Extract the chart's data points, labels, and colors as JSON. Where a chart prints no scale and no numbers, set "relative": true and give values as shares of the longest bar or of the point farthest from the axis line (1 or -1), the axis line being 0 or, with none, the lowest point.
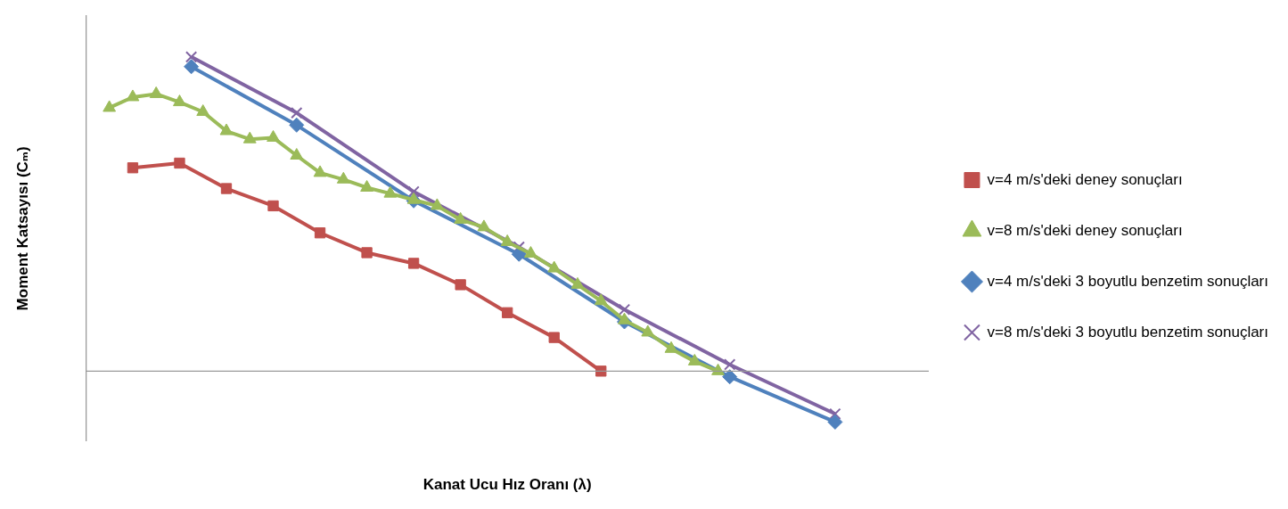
{
  "chart_data": {
    "type": "line",
    "relative": true,
    "xlabel": "Kanat Ucu Hız Oranı (λ)",
    "ylabel": "Moment Katsayısı (Cₘ)",
    "legend": "right",
    "grid": false,
    "tick_labels": false,
    "categories": [
      null,
      null,
      null,
      null,
      null,
      null,
      null,
      null,
      null,
      null,
      null,
      null,
      null,
      null,
      null,
      null,
      null,
      null,
      null,
      null,
      null,
      null,
      null,
      null,
      null,
      null,
      null,
      null,
      null,
      null,
      null,
      null,
      null,
      null,
      null,
      null,
      null,
      null,
      null,
      null,
      null,
      null,
      null,
      null,
      null,
      null,
      null,
      null,
      null,
      null,
      null,
      null,
      null,
      null,
      null,
      null,
      null,
      null,
      null,
      null,
      null,
      null,
      null,
      null,
      null,
      null,
      null,
      null,
      null,
      null,
      null,
      null,
      null
    ],
    "series": [
      {
        "name": "v=4 m/s'deki deney sonuçları",
        "color": "#c0504d",
        "marker": "square",
        "values": [
          null,
          null,
          null,
          null,
          0.647,
          null,
          null,
          null,
          0.662,
          null,
          null,
          null,
          0.581,
          null,
          null,
          null,
          0.526,
          null,
          null,
          null,
          0.44,
          null,
          null,
          null,
          0.377,
          null,
          null,
          null,
          0.343,
          null,
          null,
          null,
          0.275,
          null,
          null,
          null,
          0.186,
          null,
          null,
          null,
          0.107,
          null,
          null,
          null,
          0,
          null,
          null,
          null,
          null,
          null,
          null,
          null,
          null,
          null,
          null,
          null,
          null,
          null,
          null,
          null,
          null,
          null,
          null,
          null,
          null,
          null,
          null,
          null,
          null,
          null,
          null,
          null,
          null
        ]
      },
      {
        "name": "v=8 m/s'deki deney sonuçları",
        "color": "#9bbb59",
        "marker": "triangle",
        "values": [
          null,
          null,
          0.838,
          null,
          0.872,
          null,
          0.882,
          null,
          0.856,
          null,
          0.825,
          null,
          0.764,
          null,
          0.738,
          null,
          0.743,
          null,
          0.686,
          null,
          0.631,
          null,
          0.61,
          null,
          0.584,
          null,
          0.565,
          null,
          0.545,
          null,
          0.526,
          null,
          0.482,
          null,
          0.458,
          null,
          0.411,
          null,
          0.374,
          null,
          0.327,
          null,
          0.275,
          null,
          0.223,
          null,
          0.162,
          null,
          0.123,
          null,
          0.071,
          null,
          0.031,
          null,
          0,
          null,
          null,
          null,
          null,
          null,
          null,
          null,
          null,
          null,
          null,
          null,
          null,
          null,
          null,
          null,
          null,
          null,
          null
        ]
      },
      {
        "name": "v=4 m/s'deki 3 boyutlu benzetim sonuçları",
        "color": "#4f81bd",
        "marker": "diamond",
        "values": [
          null,
          null,
          null,
          null,
          null,
          null,
          null,
          null,
          null,
          0.969,
          null,
          null,
          null,
          null,
          null,
          null,
          null,
          null,
          0.783,
          null,
          null,
          null,
          null,
          null,
          null,
          null,
          null,
          null,
          0.542,
          null,
          null,
          null,
          null,
          null,
          null,
          null,
          null,
          0.372,
          null,
          null,
          null,
          null,
          null,
          null,
          null,
          null,
          0.157,
          null,
          null,
          null,
          null,
          null,
          null,
          null,
          null,
          -0.018,
          null,
          null,
          null,
          null,
          null,
          null,
          null,
          null,
          -0.162,
          null,
          null,
          null,
          null,
          null,
          null,
          null,
          null
        ]
      },
      {
        "name": "v=8 m/s'deki 3 boyutlu benzetim sonuçları",
        "color": "#8064a2",
        "marker": "cross",
        "values": [
          null,
          null,
          null,
          null,
          null,
          null,
          null,
          null,
          null,
          1,
          null,
          null,
          null,
          null,
          null,
          null,
          null,
          null,
          0.822,
          null,
          null,
          null,
          null,
          null,
          null,
          null,
          null,
          null,
          0.571,
          null,
          null,
          null,
          null,
          null,
          null,
          null,
          null,
          0.395,
          null,
          null,
          null,
          null,
          null,
          null,
          null,
          null,
          0.196,
          null,
          null,
          null,
          null,
          null,
          null,
          null,
          null,
          0.021,
          null,
          null,
          null,
          null,
          null,
          null,
          null,
          null,
          -0.136,
          null,
          null,
          null,
          null,
          null,
          null,
          null,
          null
        ]
      }
    ]
  }
}
